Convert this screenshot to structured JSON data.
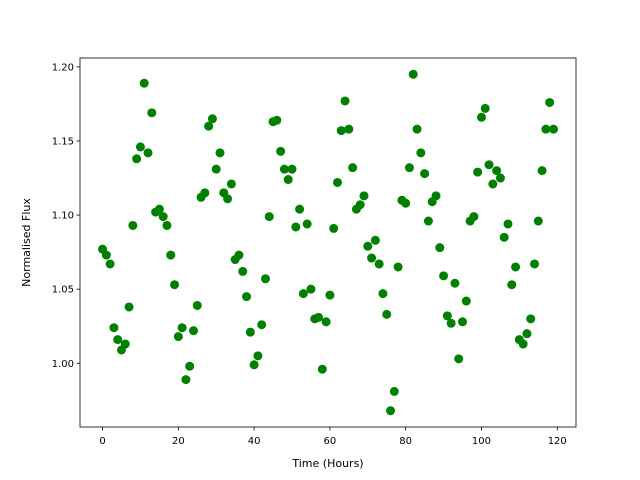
{
  "chart_data": {
    "type": "scatter",
    "xlabel": "Time (Hours)",
    "ylabel": "Normalised Flux",
    "color": "#008000",
    "x": [
      0,
      1,
      2,
      3,
      4,
      5,
      6,
      7,
      8,
      9,
      10,
      11,
      12,
      13,
      14,
      15,
      16,
      17,
      18,
      19,
      20,
      21,
      22,
      23,
      24,
      25,
      26,
      27,
      28,
      29,
      30,
      31,
      32,
      33,
      34,
      35,
      36,
      37,
      38,
      39,
      40,
      41,
      42,
      43,
      44,
      45,
      46,
      47,
      48,
      49,
      50,
      51,
      52,
      53,
      54,
      55,
      56,
      57,
      58,
      59,
      60,
      61,
      62,
      63,
      64,
      65,
      66,
      67,
      68,
      69,
      70,
      71,
      72,
      73,
      74,
      75,
      76,
      77,
      78,
      79,
      80,
      81,
      82,
      83,
      84,
      85,
      86,
      87,
      88,
      89,
      90,
      91,
      92,
      93,
      94,
      95,
      96,
      97,
      98,
      99,
      100,
      101,
      102,
      103,
      104,
      105,
      106,
      107,
      108,
      109,
      110,
      111,
      112,
      113,
      114,
      115,
      116,
      117,
      118,
      119
    ],
    "values": [
      1.077,
      1.073,
      1.067,
      1.024,
      1.016,
      1.009,
      1.013,
      1.038,
      1.093,
      1.138,
      1.146,
      1.189,
      1.142,
      1.169,
      1.102,
      1.104,
      1.099,
      1.093,
      1.073,
      1.053,
      1.018,
      1.024,
      0.989,
      0.998,
      1.022,
      1.039,
      1.112,
      1.115,
      1.16,
      1.165,
      1.131,
      1.142,
      1.115,
      1.111,
      1.121,
      1.07,
      1.073,
      1.062,
      1.045,
      1.021,
      0.999,
      1.005,
      1.026,
      1.057,
      1.099,
      1.163,
      1.164,
      1.143,
      1.131,
      1.124,
      1.131,
      1.092,
      1.104,
      1.047,
      1.094,
      1.05,
      1.03,
      1.031,
      0.996,
      1.028,
      1.046,
      1.091,
      1.122,
      1.157,
      1.177,
      1.158,
      1.132,
      1.104,
      1.107,
      1.113,
      1.079,
      1.071,
      1.083,
      1.067,
      1.047,
      1.033,
      0.968,
      0.981,
      1.065,
      1.11,
      1.108,
      1.132,
      1.195,
      1.158,
      1.142,
      1.128,
      1.096,
      1.109,
      1.113,
      1.078,
      1.059,
      1.032,
      1.027,
      1.054,
      1.003,
      1.028,
      1.042,
      1.096,
      1.099,
      1.129,
      1.166,
      1.172,
      1.134,
      1.121,
      1.13,
      1.125,
      1.085,
      1.094,
      1.053,
      1.065,
      1.016,
      1.013,
      1.02,
      1.03,
      1.067,
      1.096,
      1.13,
      1.158,
      1.176,
      1.158
    ],
    "xlim": [
      -5.95,
      124.95
    ],
    "ylim": [
      0.957,
      1.206
    ],
    "xticks": [
      0,
      20,
      40,
      60,
      80,
      100,
      120
    ],
    "yticks": [
      {
        "value": 1,
        "label": "1.00"
      },
      1.05,
      {
        "value": 1.1,
        "label": "1.10"
      },
      1.15,
      {
        "value": 1.2,
        "label": "1.20"
      }
    ]
  }
}
